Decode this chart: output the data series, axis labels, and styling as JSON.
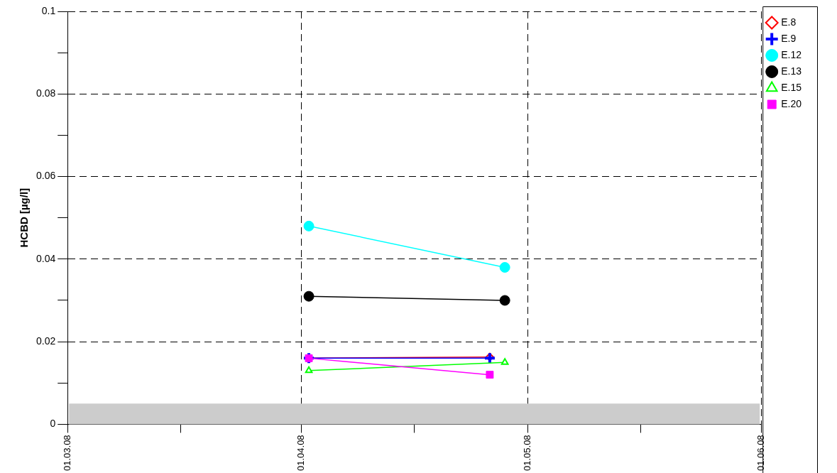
{
  "chart_data": {
    "type": "line",
    "ylabel": "HCBD [µg/l]",
    "x": [
      "2008-04-02",
      "2008-04-28"
    ],
    "series": [
      {
        "name": "E.8",
        "color": "#ff0000",
        "marker": "diamond",
        "x": [
          "2008-04-02",
          "2008-04-26"
        ],
        "values": [
          0.016,
          0.0163
        ]
      },
      {
        "name": "E.9",
        "color": "#0000ff",
        "marker": "cross",
        "x": [
          "2008-04-02",
          "2008-04-26"
        ],
        "values": [
          0.016,
          0.016
        ]
      },
      {
        "name": "E.12",
        "color": "#00ffff",
        "marker": "circle",
        "values": [
          0.048,
          0.038
        ]
      },
      {
        "name": "E.13",
        "color": "#000000",
        "marker": "circle",
        "values": [
          0.031,
          0.03
        ]
      },
      {
        "name": "E.15",
        "color": "#00ff00",
        "marker": "triangle",
        "values": [
          0.013,
          0.015
        ]
      },
      {
        "name": "E.20",
        "color": "#ff00ff",
        "marker": "square",
        "x": [
          "2008-04-02",
          "2008-04-26"
        ],
        "values": [
          0.016,
          0.012
        ]
      }
    ],
    "xlim": [
      "2008-03-01",
      "2008-06-01"
    ],
    "xticks": [
      {
        "value": "2008-03-01",
        "label": "01.03.08"
      },
      {
        "value": "2008-03-16",
        "label": null
      },
      {
        "value": "2008-04-01",
        "label": "01.04.08"
      },
      {
        "value": "2008-04-16",
        "label": null
      },
      {
        "value": "2008-05-01",
        "label": "01.05.08"
      },
      {
        "value": "2008-05-16",
        "label": null
      },
      {
        "value": "2008-06-01",
        "label": "01.06.08"
      }
    ],
    "ylim": [
      0,
      0.1
    ],
    "yticks": [
      0,
      {
        "value": 0.01,
        "label": null
      },
      0.02,
      {
        "value": 0.03,
        "label": null
      },
      0.04,
      {
        "value": 0.05,
        "label": null
      },
      0.06,
      {
        "value": 0.07,
        "label": null
      },
      0.08,
      {
        "value": 0.09,
        "label": null
      },
      0.1
    ],
    "bands": [
      {
        "axis": "y",
        "from": 0,
        "to": 0.005,
        "color": "#cccccc"
      }
    ],
    "grid": true,
    "legend": "top right",
    "line_style": "solid"
  }
}
